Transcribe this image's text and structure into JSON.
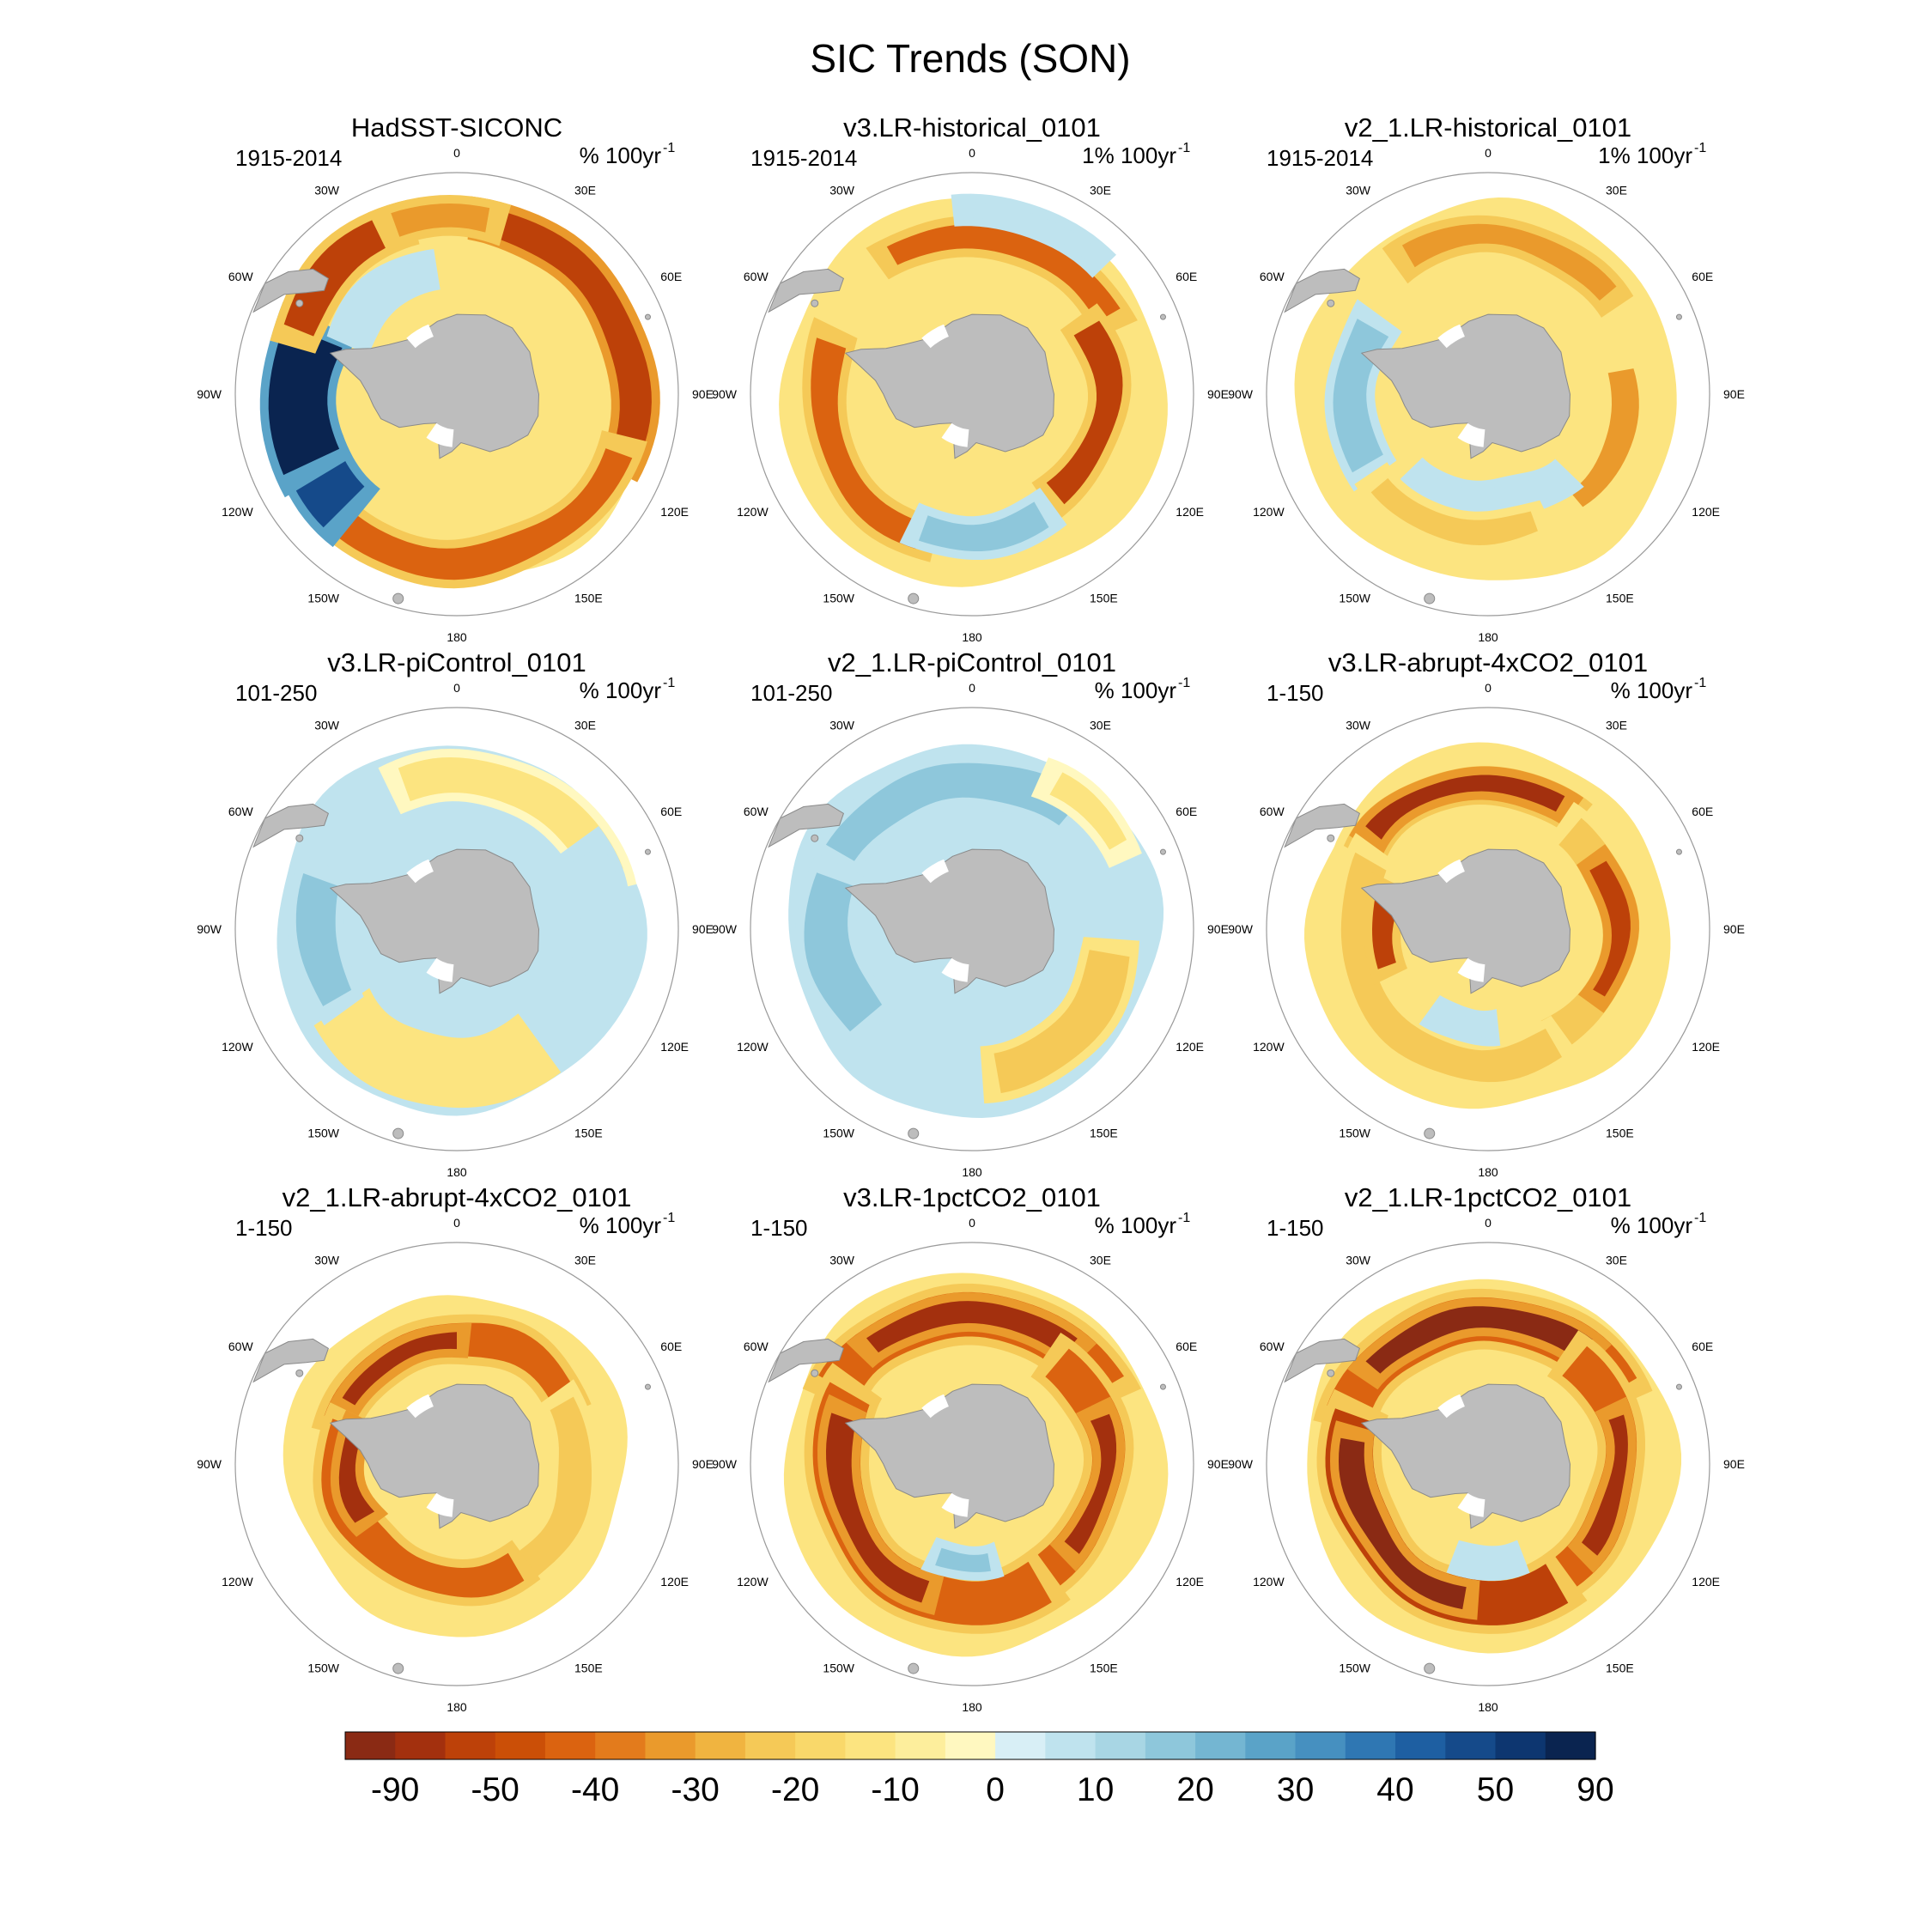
{
  "chart_data": {
    "type": "heatmap",
    "title": "SIC Trends (SON)",
    "projection": "south-polar-stereographic",
    "longitude_labels": [
      "0",
      "30E",
      "60E",
      "90E",
      "120E",
      "150E",
      "180",
      "150W",
      "120W",
      "90W",
      "60W",
      "30W"
    ],
    "colorbar": {
      "ticks": [
        "-90",
        "-50",
        "-40",
        "-30",
        "-20",
        "-10",
        "0",
        "10",
        "20",
        "30",
        "40",
        "50",
        "90"
      ],
      "tick_values": [
        -90,
        -50,
        -40,
        -30,
        -20,
        -10,
        0,
        10,
        20,
        30,
        40,
        50,
        90
      ],
      "colors": [
        "#8a2a14",
        "#a3300e",
        "#bd4109",
        "#cb4f07",
        "#db6310",
        "#e37b1c",
        "#ea9a2c",
        "#f0b440",
        "#f5c957",
        "#f9d86a",
        "#fce480",
        "#fdee9c",
        "#fff8c0",
        "#d8eff6",
        "#bfe3ee",
        "#a8d6e4",
        "#8ec7db",
        "#74b6d2",
        "#5aa3c8",
        "#4690c0",
        "#2f77b3",
        "#1e5fa2",
        "#154a8a",
        "#0d3670",
        "#0a2450"
      ]
    },
    "panels": [
      {
        "title": "HadSST-SICONC",
        "period": "1915-2014",
        "units": "% 100yr",
        "units_exp": "-1",
        "dominant_trend": "strong negative ring, strong positive Weddell/Bellingshausen sector",
        "pattern": "hadsst"
      },
      {
        "title": "v3.LR-historical_0101",
        "period": "1915-2014",
        "units": "1% 100yr",
        "units_exp": "-1",
        "dominant_trend": "moderate negative",
        "pattern": "hist3"
      },
      {
        "title": "v2_1.LR-historical_0101",
        "period": "1915-2014",
        "units": "1% 100yr",
        "units_exp": "-1",
        "dominant_trend": "weak negative",
        "pattern": "hist2"
      },
      {
        "title": "v3.LR-piControl_0101",
        "period": "101-250",
        "units": "% 100yr",
        "units_exp": "-1",
        "dominant_trend": "near zero, mixed",
        "pattern": "pic3"
      },
      {
        "title": "v2_1.LR-piControl_0101",
        "period": "101-250",
        "units": "% 100yr",
        "units_exp": "-1",
        "dominant_trend": "weak positive",
        "pattern": "pic2"
      },
      {
        "title": "v3.LR-abrupt-4xCO2_0101",
        "period": "1-150",
        "units": "% 100yr",
        "units_exp": "-1",
        "dominant_trend": "strong negative",
        "pattern": "ab3"
      },
      {
        "title": "v2_1.LR-abrupt-4xCO2_0101",
        "period": "1-150",
        "units": "% 100yr",
        "units_exp": "-1",
        "dominant_trend": "strong negative",
        "pattern": "ab2"
      },
      {
        "title": "v3.LR-1pctCO2_0101",
        "period": "1-150",
        "units": "% 100yr",
        "units_exp": "-1",
        "dominant_trend": "very strong negative",
        "pattern": "pct3"
      },
      {
        "title": "v2_1.LR-1pctCO2_0101",
        "period": "1-150",
        "units": "% 100yr",
        "units_exp": "-1",
        "dominant_trend": "very strong negative",
        "pattern": "pct2"
      }
    ]
  }
}
